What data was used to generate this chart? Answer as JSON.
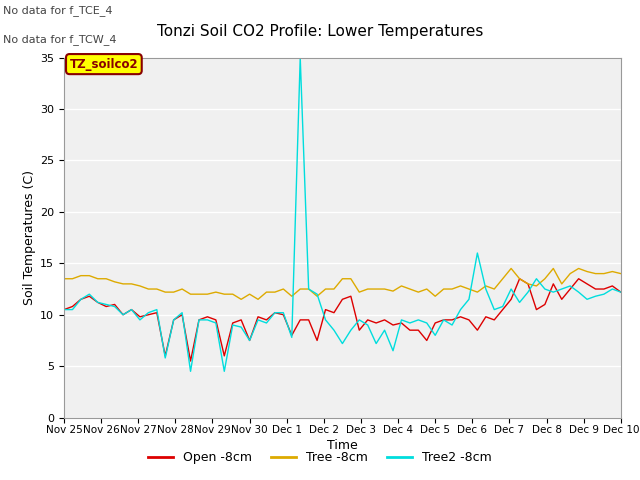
{
  "title": "Tonzi Soil CO2 Profile: Lower Temperatures",
  "xlabel": "Time",
  "ylabel": "Soil Temperatures (C)",
  "ylim": [
    0,
    35
  ],
  "yticks": [
    0,
    5,
    10,
    15,
    20,
    25,
    30,
    35
  ],
  "annotations": [
    "No data for f_TCE_4",
    "No data for f_TCW_4"
  ],
  "legend_label": "TZ_soilco2",
  "plot_bg_color": "#f0f0f0",
  "fig_bg_color": "#ffffff",
  "line_colors": {
    "open": "#dd0000",
    "tree": "#ddaa00",
    "tree2": "#00dddd"
  },
  "x_labels": [
    "Nov 25",
    "Nov 26",
    "Nov 27",
    "Nov 28",
    "Nov 29",
    "Nov 30",
    "Dec 1",
    "Dec 2",
    "Dec 3",
    "Dec 4",
    "Dec 5",
    "Dec 6",
    "Dec 7",
    "Dec 8",
    "Dec 9",
    "Dec 10"
  ],
  "open_8cm": [
    10.5,
    10.8,
    11.5,
    11.8,
    11.2,
    10.8,
    11.0,
    10.0,
    10.5,
    9.8,
    10.0,
    10.2,
    6.0,
    9.5,
    10.0,
    5.5,
    9.5,
    9.8,
    9.5,
    6.0,
    9.2,
    9.5,
    7.5,
    9.8,
    9.5,
    10.2,
    10.0,
    8.0,
    9.5,
    9.5,
    7.5,
    10.5,
    10.2,
    11.5,
    11.8,
    8.5,
    9.5,
    9.2,
    9.5,
    9.0,
    9.2,
    8.5,
    8.5,
    7.5,
    9.2,
    9.5,
    9.5,
    9.8,
    9.5,
    8.5,
    9.8,
    9.5,
    10.5,
    11.5,
    13.5,
    13.0,
    10.5,
    11.0,
    13.0,
    11.5,
    12.5,
    13.5,
    13.0,
    12.5,
    12.5,
    12.8,
    12.2
  ],
  "tree_8cm": [
    13.5,
    13.5,
    13.8,
    13.8,
    13.5,
    13.5,
    13.2,
    13.0,
    13.0,
    12.8,
    12.5,
    12.5,
    12.2,
    12.2,
    12.5,
    12.0,
    12.0,
    12.0,
    12.2,
    12.0,
    12.0,
    11.5,
    12.0,
    11.5,
    12.2,
    12.2,
    12.5,
    11.8,
    12.5,
    12.5,
    11.8,
    12.5,
    12.5,
    13.5,
    13.5,
    12.2,
    12.5,
    12.5,
    12.5,
    12.3,
    12.8,
    12.5,
    12.2,
    12.5,
    11.8,
    12.5,
    12.5,
    12.8,
    12.5,
    12.2,
    12.8,
    12.5,
    13.5,
    14.5,
    13.5,
    13.0,
    12.8,
    13.5,
    14.5,
    13.0,
    14.0,
    14.5,
    14.2,
    14.0,
    14.0,
    14.2,
    14.0
  ],
  "tree2_8cm": [
    10.5,
    10.5,
    11.5,
    12.0,
    11.2,
    11.0,
    10.8,
    10.0,
    10.5,
    9.5,
    10.2,
    10.5,
    5.8,
    9.5,
    10.2,
    4.5,
    9.5,
    9.5,
    9.2,
    4.5,
    9.0,
    8.8,
    7.5,
    9.5,
    9.2,
    10.2,
    10.2,
    7.8,
    35.0,
    12.5,
    12.0,
    9.5,
    8.5,
    7.2,
    8.5,
    9.5,
    9.0,
    7.2,
    8.5,
    6.5,
    9.5,
    9.2,
    9.5,
    9.2,
    8.0,
    9.5,
    9.0,
    10.5,
    11.5,
    16.0,
    12.5,
    10.5,
    10.8,
    12.5,
    11.2,
    12.2,
    13.5,
    12.5,
    12.2,
    12.5,
    12.8,
    12.2,
    11.5,
    11.8,
    12.0,
    12.5,
    12.2
  ]
}
